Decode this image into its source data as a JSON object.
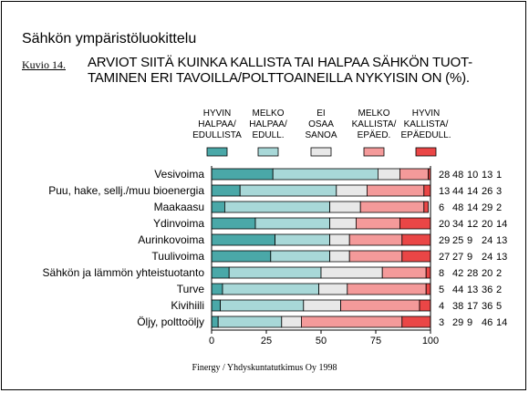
{
  "header": {
    "title": "Sähkön ympäristöluokittelu",
    "figure_label": "Kuvio 14.",
    "subtitle_line1": "ARVIOT SIITÄ KUINKA KALLISTA TAI HALPAA SÄHKÖN TUOT-",
    "subtitle_line2": "TAMINEN ERI TAVOILLA/POLTTOAINEILLA NYKYISIN ON (%)."
  },
  "footer": {
    "source": "Finergy / Yhdyskuntatutkimus Oy 1998"
  },
  "chart_data": {
    "type": "bar",
    "orientation": "horizontal",
    "stacked": true,
    "categories": [
      "Vesivoima",
      "Puu, hake, sellj./muu bioenergia",
      "Maakaasu",
      "Ydinvoima",
      "Aurinkovoima",
      "Tuulivoima",
      "Sähkön ja lämmön yhteistuotanto",
      "Turve",
      "Kivihiili",
      "Öljy, polttoöljy"
    ],
    "series": [
      {
        "name_lines": [
          "HYVIN",
          "HALPAA/",
          "EDULLISTA"
        ],
        "color": "#4aa8a8",
        "values": [
          28,
          13,
          6,
          20,
          29,
          27,
          8,
          5,
          4,
          3
        ]
      },
      {
        "name_lines": [
          "MELKO",
          "HALPAA/",
          "EDULL."
        ],
        "color": "#a8d8d8",
        "values": [
          48,
          44,
          48,
          34,
          25,
          27,
          42,
          44,
          38,
          29
        ]
      },
      {
        "name_lines": [
          "EI",
          "OSAA",
          "SANOA"
        ],
        "color": "#e8e8e8",
        "values": [
          10,
          14,
          14,
          12,
          9,
          9,
          28,
          13,
          17,
          9
        ]
      },
      {
        "name_lines": [
          "MELKO",
          "KALLISTA/",
          "EPÄED."
        ],
        "color": "#f49a9a",
        "values": [
          13,
          26,
          29,
          20,
          24,
          24,
          20,
          36,
          36,
          46
        ]
      },
      {
        "name_lines": [
          "HYVIN",
          "KALLISTA/",
          "EPÄEDULL."
        ],
        "color": "#ea4646",
        "values": [
          1,
          3,
          2,
          14,
          13,
          13,
          2,
          2,
          5,
          14
        ]
      }
    ],
    "xlim": [
      0,
      100
    ],
    "xticks": [
      0,
      25,
      50,
      75,
      100
    ],
    "value_labels": [
      [
        "28",
        "48",
        "10",
        "13",
        "1"
      ],
      [
        "13",
        "44",
        "14",
        "26",
        "3"
      ],
      [
        "6",
        "48",
        "14",
        "29",
        "2"
      ],
      [
        "20",
        "34",
        "12",
        "20",
        "14"
      ],
      [
        "29",
        "25",
        "9",
        "24",
        "13"
      ],
      [
        "27",
        "27",
        "9",
        "24",
        "13"
      ],
      [
        "8",
        "42",
        "28",
        "20",
        "2"
      ],
      [
        "5",
        "44",
        "13",
        "36",
        "2"
      ],
      [
        "4",
        "38",
        "17",
        "36",
        "5"
      ],
      [
        "3",
        "29",
        "9",
        "46",
        "14"
      ]
    ],
    "grid": false,
    "legend_position": "top"
  }
}
